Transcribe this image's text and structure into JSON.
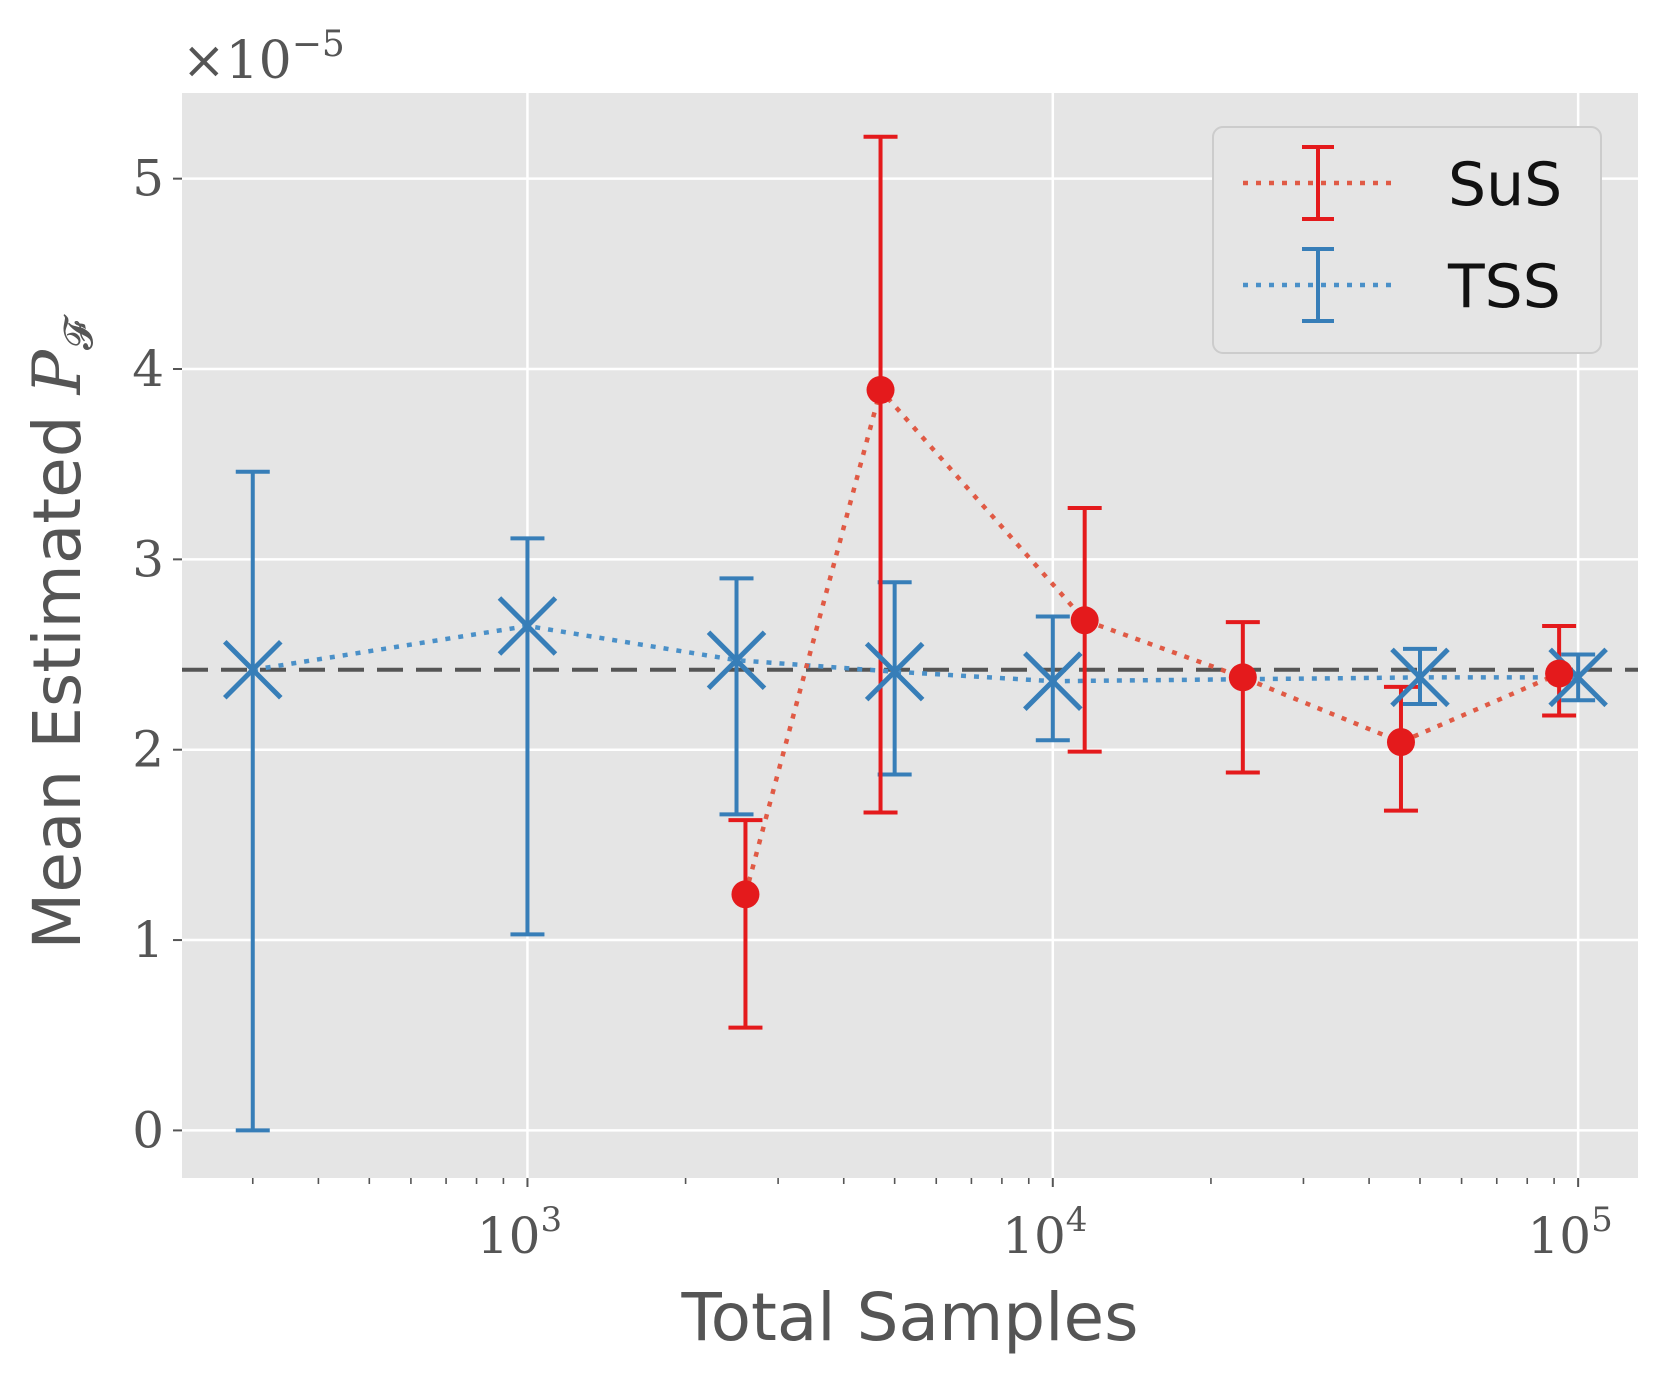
{
  "chart_data": {
    "type": "scatter",
    "xlabel": "Total Samples",
    "ylabel_text": "Mean Estimated",
    "ylabel_symbol": "P",
    "ylabel_subscript": "𝓕",
    "multiplier": {
      "base": "×10",
      "exponent": "−5"
    },
    "xscale": "log",
    "xlim": [
      220,
      130000
    ],
    "ylim": [
      -0.25,
      5.45
    ],
    "yticks": [
      {
        "value": 0,
        "label": "0"
      },
      {
        "value": 1,
        "label": "1"
      },
      {
        "value": 2,
        "label": "2"
      },
      {
        "value": 3,
        "label": "3"
      },
      {
        "value": 4,
        "label": "4"
      },
      {
        "value": 5,
        "label": "5"
      }
    ],
    "xticks": [
      {
        "value": 1000,
        "base": "10",
        "exp": "3"
      },
      {
        "value": 10000,
        "base": "10",
        "exp": "4"
      },
      {
        "value": 100000,
        "base": "10",
        "exp": "5"
      }
    ],
    "minor_xticks": [
      300,
      400,
      500,
      600,
      700,
      800,
      900,
      2000,
      3000,
      4000,
      5000,
      6000,
      7000,
      8000,
      9000,
      20000,
      30000,
      40000,
      50000,
      60000,
      70000,
      80000,
      90000
    ],
    "reference_line": {
      "value": 2.42,
      "color": "#555555"
    },
    "legend_position": "top-right",
    "series": [
      {
        "name": "SuS",
        "color": "#e41a1c",
        "line_color": "#e05a45",
        "marker": "circle",
        "x": [
          2600,
          4700,
          11500,
          23000,
          46000,
          92000
        ],
        "y": [
          1.24,
          3.89,
          2.68,
          2.38,
          2.04,
          2.4
        ],
        "err_low": [
          0.54,
          1.67,
          1.99,
          1.88,
          1.68,
          2.18
        ],
        "err_high": [
          1.63,
          5.22,
          3.27,
          2.67,
          2.33,
          2.65
        ]
      },
      {
        "name": "TSS",
        "color": "#377eb8",
        "line_color": "#4a90c8",
        "marker": "x",
        "x": [
          300,
          1000,
          2500,
          5000,
          10000,
          50000,
          100000
        ],
        "y": [
          2.42,
          2.65,
          2.47,
          2.41,
          2.36,
          2.38,
          2.38
        ],
        "err_low": [
          0.0,
          1.03,
          1.66,
          1.87,
          2.05,
          2.24,
          2.26
        ],
        "err_high": [
          3.46,
          3.11,
          2.9,
          2.88,
          2.7,
          2.53,
          2.5
        ]
      }
    ]
  }
}
